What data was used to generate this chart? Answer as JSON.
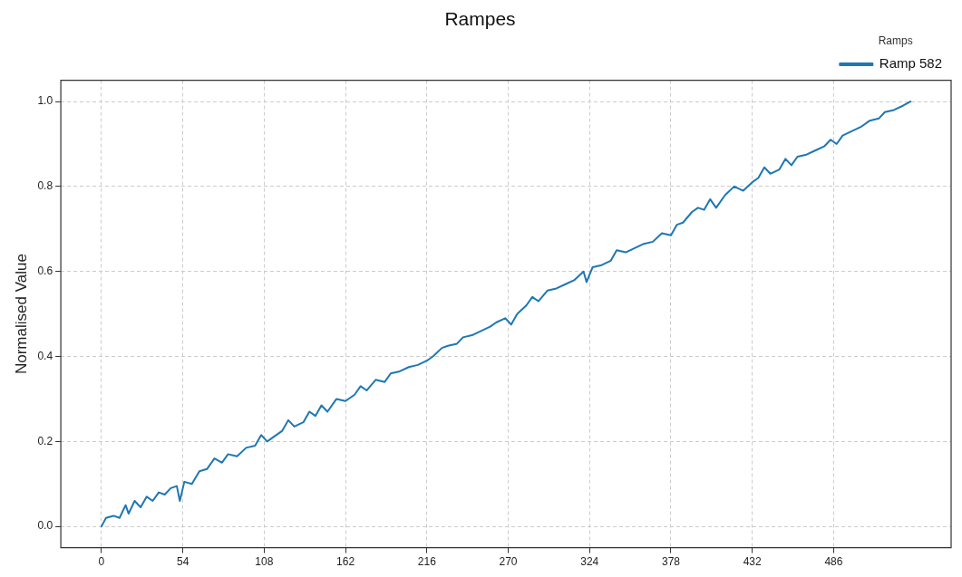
{
  "chart_data": {
    "type": "line",
    "title": "Rampes",
    "ylabel": "Normalised Value",
    "legend_title": "Ramps",
    "legend": "top right",
    "grid": true,
    "marker": "none",
    "line_style": "solid",
    "xlim": [
      -27,
      564
    ],
    "xticks": [
      0,
      54,
      108,
      162,
      216,
      270,
      324,
      378,
      432,
      486
    ],
    "ylim": [
      -0.05,
      1.05
    ],
    "yticks": [
      {
        "value": 0,
        "label": "0.0"
      },
      {
        "value": 0.2,
        "label": "0.2"
      },
      {
        "value": 0.4,
        "label": "0.4"
      },
      {
        "value": 0.6,
        "label": "0.6"
      },
      {
        "value": 0.8,
        "label": "0.8"
      },
      {
        "value": 1,
        "label": "1.0"
      }
    ],
    "x": [
      0,
      3,
      8,
      12,
      16,
      18,
      22,
      26,
      30,
      34,
      38,
      42,
      46,
      50,
      52,
      55,
      60,
      65,
      70,
      75,
      80,
      84,
      90,
      96,
      102,
      106,
      110,
      114,
      120,
      124,
      128,
      134,
      138,
      142,
      146,
      150,
      156,
      162,
      168,
      172,
      176,
      182,
      188,
      192,
      198,
      204,
      210,
      216,
      220,
      226,
      230,
      236,
      240,
      246,
      252,
      258,
      262,
      268,
      272,
      276,
      282,
      286,
      290,
      296,
      302,
      308,
      314,
      320,
      322,
      326,
      332,
      338,
      342,
      348,
      354,
      360,
      366,
      372,
      378,
      382,
      386,
      392,
      396,
      400,
      404,
      408,
      414,
      420,
      426,
      432,
      436,
      440,
      444,
      450,
      454,
      458,
      462,
      468,
      474,
      480,
      484,
      488,
      492,
      498,
      504,
      510,
      516,
      520,
      526,
      532,
      537
    ],
    "series": [
      {
        "name": "Ramp 582",
        "color": "#1f77b4",
        "values": [
          0,
          0.02,
          0.025,
          0.02,
          0.05,
          0.03,
          0.06,
          0.045,
          0.07,
          0.06,
          0.08,
          0.075,
          0.09,
          0.095,
          0.06,
          0.105,
          0.1,
          0.13,
          0.135,
          0.16,
          0.15,
          0.17,
          0.165,
          0.185,
          0.19,
          0.215,
          0.2,
          0.21,
          0.225,
          0.25,
          0.235,
          0.245,
          0.27,
          0.26,
          0.285,
          0.27,
          0.3,
          0.295,
          0.31,
          0.33,
          0.32,
          0.345,
          0.34,
          0.36,
          0.365,
          0.375,
          0.38,
          0.39,
          0.4,
          0.42,
          0.425,
          0.43,
          0.445,
          0.45,
          0.46,
          0.47,
          0.48,
          0.49,
          0.475,
          0.5,
          0.52,
          0.54,
          0.53,
          0.555,
          0.56,
          0.57,
          0.58,
          0.6,
          0.575,
          0.61,
          0.615,
          0.625,
          0.65,
          0.645,
          0.655,
          0.665,
          0.67,
          0.69,
          0.685,
          0.71,
          0.715,
          0.74,
          0.75,
          0.745,
          0.77,
          0.75,
          0.78,
          0.8,
          0.79,
          0.81,
          0.82,
          0.845,
          0.83,
          0.84,
          0.865,
          0.85,
          0.87,
          0.875,
          0.885,
          0.895,
          0.91,
          0.9,
          0.92,
          0.93,
          0.94,
          0.955,
          0.96,
          0.975,
          0.98,
          0.99,
          1.0
        ]
      }
    ]
  }
}
